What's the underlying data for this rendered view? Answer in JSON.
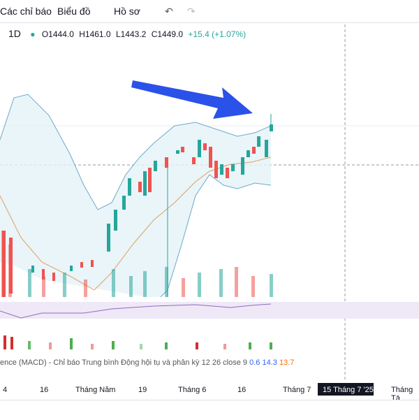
{
  "toolbar": {
    "indicators": "Các chỉ báo",
    "chart": "Biểu đồ",
    "profile": "Hồ sơ"
  },
  "legend": {
    "interval": "1D",
    "open": "O1444.0",
    "high": "H1461.0",
    "low": "L1443.2",
    "close": "C1449.0",
    "change": "+15.4 (+1.07%)"
  },
  "macd": {
    "label": "ence (MACD) - Chỉ báo Trung bình Động hội tụ và phân kỳ 12 26 close 9",
    "values": [
      "0.6",
      "14.3",
      "13.7"
    ]
  },
  "x_axis": [
    "4",
    "16",
    "Tháng Năm",
    "19",
    "Tháng 6",
    "16",
    "Tháng 7",
    "15 Tháng 7 '25",
    "Tháng Tá"
  ]
}
